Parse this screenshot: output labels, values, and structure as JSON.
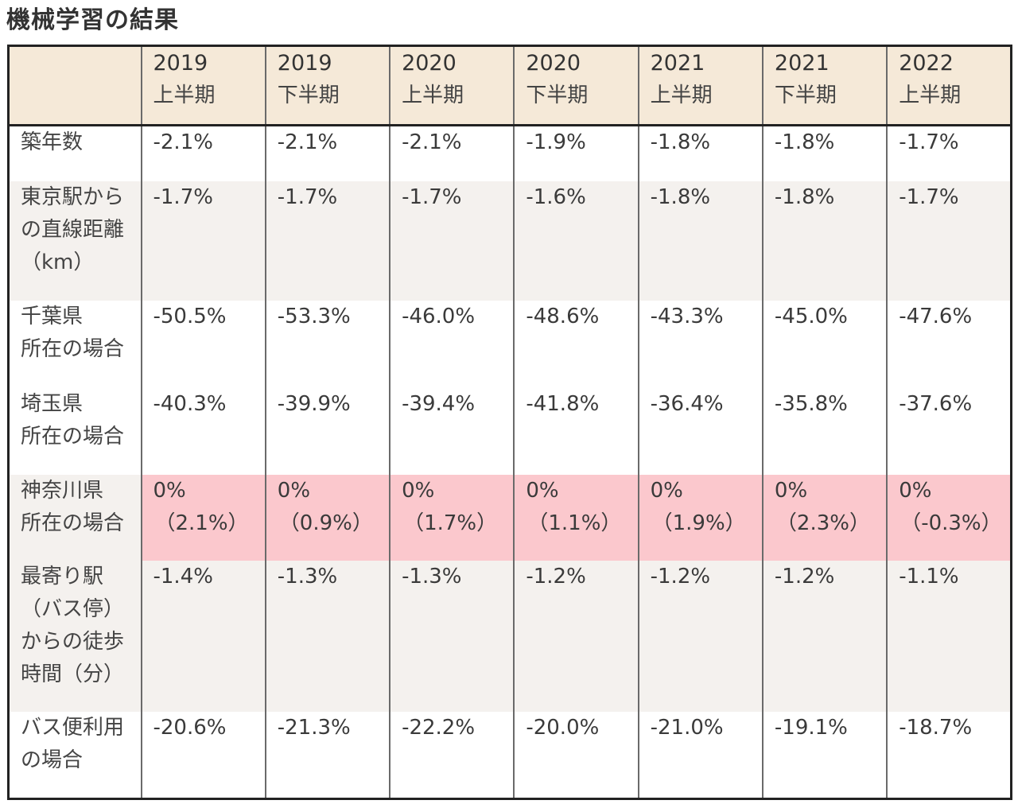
{
  "title": "機械学習の結果",
  "columns": [
    {
      "year": "2019",
      "half": "上半期"
    },
    {
      "year": "2019",
      "half": "下半期"
    },
    {
      "year": "2020",
      "half": "上半期"
    },
    {
      "year": "2020",
      "half": "下半期"
    },
    {
      "year": "2021",
      "half": "上半期"
    },
    {
      "year": "2021",
      "half": "下半期"
    },
    {
      "year": "2022",
      "half": "上半期"
    }
  ],
  "rows": [
    {
      "label": [
        "築年数"
      ],
      "values": [
        "-2.1%",
        "-2.1%",
        "-2.1%",
        "-1.9%",
        "-1.8%",
        "-1.8%",
        "-1.7%"
      ]
    },
    {
      "label": [
        "東京駅から",
        "の直線距離",
        "（km）"
      ],
      "values": [
        "-1.7%",
        "-1.7%",
        "-1.7%",
        "-1.6%",
        "-1.8%",
        "-1.8%",
        "-1.7%"
      ]
    },
    {
      "label": [
        "千葉県",
        "所在の場合"
      ],
      "values": [
        "-50.5%",
        "-53.3%",
        "-46.0%",
        "-48.6%",
        "-43.3%",
        "-45.0%",
        "-47.6%"
      ]
    },
    {
      "label": [
        "埼玉県",
        "所在の場合"
      ],
      "values": [
        "-40.3%",
        "-39.9%",
        "-39.4%",
        "-41.8%",
        "-36.4%",
        "-35.8%",
        "-37.6%"
      ]
    },
    {
      "label": [
        "神奈川県",
        "所在の場合"
      ],
      "values": [
        "0%",
        "0%",
        "0%",
        "0%",
        "0%",
        "0%",
        "0%"
      ],
      "subvalues": [
        "（2.1%）",
        "（0.9%）",
        "（1.7%）",
        "（1.1%）",
        "（1.9%）",
        "（2.3%）",
        "（-0.3%）"
      ]
    },
    {
      "label": [
        "最寄り駅",
        "（バス停）",
        "からの徒歩",
        "時間（分）"
      ],
      "values": [
        "-1.4%",
        "-1.3%",
        "-1.3%",
        "-1.2%",
        "-1.2%",
        "-1.2%",
        "-1.1%"
      ]
    },
    {
      "label": [
        "バス便利用",
        "の場合"
      ],
      "values": [
        "-20.6%",
        "-21.3%",
        "-22.2%",
        "-20.0%",
        "-21.0%",
        "-19.1%",
        "-18.7%"
      ]
    }
  ],
  "colors": {
    "header_bg": "#f5e9d8",
    "stripe_bg": "#f4f1ee",
    "highlight_bg": "#fbc8cd",
    "border": "#222222"
  }
}
